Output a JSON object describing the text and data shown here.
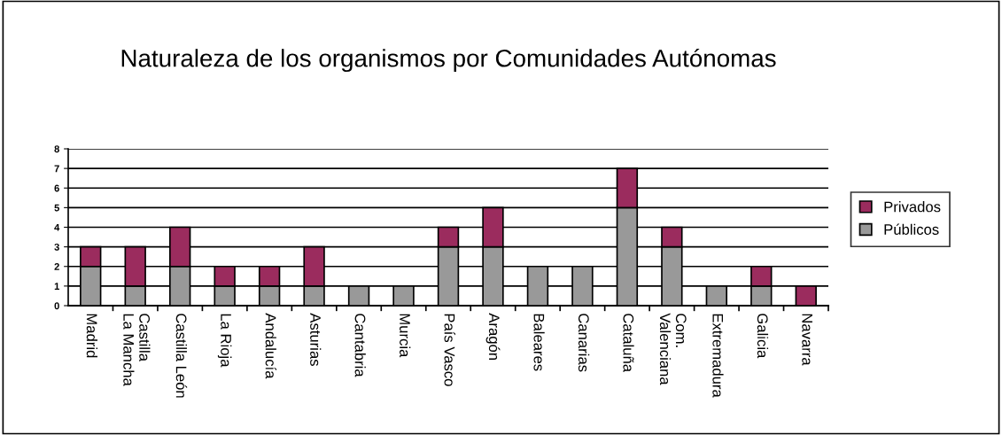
{
  "chart_data": {
    "type": "bar",
    "title": "Naturaleza de los organismos por Comunidades Autónomas",
    "categories": [
      "Madrid",
      "Castilla\nLa Mancha",
      "Castilla León",
      "La Rioja",
      "Andalucía",
      "Asturias",
      "Cantabria",
      "Murcia",
      "País Vasco",
      "Aragón",
      "Baleares",
      "Canarias",
      "Cataluña",
      "Com.\nValenciana",
      "Extremadura",
      "Galicia",
      "Navarra"
    ],
    "stacked": true,
    "series": [
      {
        "name": "Públicos",
        "color": "#999999",
        "values": [
          2,
          1,
          2,
          1,
          1,
          1,
          1,
          1,
          3,
          3,
          2,
          2,
          5,
          3,
          1,
          1,
          0
        ]
      },
      {
        "name": "Privados",
        "color": "#9b2c5e",
        "values": [
          1,
          2,
          2,
          1,
          1,
          2,
          0,
          0,
          1,
          2,
          0,
          0,
          2,
          1,
          0,
          1,
          1
        ]
      }
    ],
    "ylim": [
      0,
      8
    ],
    "yticks": [
      0,
      1,
      2,
      3,
      4,
      5,
      6,
      7,
      8
    ],
    "grid": "y",
    "legend": "right"
  }
}
